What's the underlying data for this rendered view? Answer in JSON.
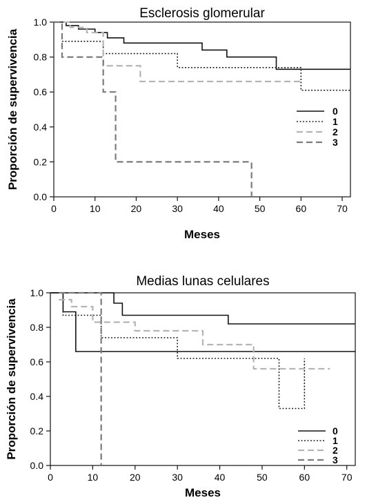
{
  "chart_data": [
    {
      "type": "line",
      "step": true,
      "title": "Esclerosis glomerular",
      "xlabel": "Meses",
      "ylabel": "Proporción de supervivencia",
      "xlim": [
        0,
        72
      ],
      "ylim": [
        0,
        1
      ],
      "xticks": [
        0,
        10,
        20,
        30,
        40,
        50,
        60,
        70
      ],
      "yticks": [
        "0.0",
        "0.2",
        "0.4",
        "0.6",
        "0.8",
        "1.0"
      ],
      "legend_position": "right",
      "series": [
        {
          "name": "0",
          "style": "solid",
          "color": "#111111",
          "x": [
            0,
            3,
            6,
            10,
            13,
            17,
            36,
            42,
            54,
            72
          ],
          "y": [
            1.0,
            0.98,
            0.96,
            0.94,
            0.91,
            0.88,
            0.84,
            0.8,
            0.73,
            0.73
          ]
        },
        {
          "name": "1",
          "style": "dotted",
          "color": "#222222",
          "x": [
            2,
            12,
            30,
            60,
            72
          ],
          "y": [
            0.89,
            0.82,
            0.74,
            0.61,
            0.61
          ]
        },
        {
          "name": "2",
          "style": "dashed",
          "color": "#b4b4b4",
          "x": [
            0,
            4,
            8,
            12,
            21,
            60
          ],
          "y": [
            1.0,
            0.97,
            0.94,
            0.75,
            0.66,
            0.66
          ]
        },
        {
          "name": "3",
          "style": "dashed",
          "color": "#7a7a7a",
          "x": [
            0,
            2,
            12,
            15,
            48
          ],
          "y": [
            1.0,
            0.8,
            0.6,
            0.2,
            0.0
          ]
        }
      ]
    },
    {
      "type": "line",
      "step": true,
      "title": "Medias lunas celulares",
      "xlabel": "Meses",
      "ylabel": "Proporción de supervivencia",
      "xlim": [
        0,
        72
      ],
      "ylim": [
        0,
        1
      ],
      "xticks": [
        0,
        10,
        20,
        30,
        40,
        50,
        60,
        70
      ],
      "yticks": [
        "0.0",
        "0.2",
        "0.4",
        "0.6",
        "0.8",
        "1.0"
      ],
      "legend_position": "right",
      "series": [
        {
          "name": "0",
          "style": "solid",
          "color": "#111111",
          "x": [
            0,
            3,
            6,
            72
          ],
          "y": [
            1.0,
            0.89,
            0.66,
            0.66
          ]
        },
        {
          "name": "0",
          "style": "solid",
          "color": "#111111",
          "x": [
            0,
            15,
            17,
            42,
            72
          ],
          "y": [
            1.0,
            0.94,
            0.87,
            0.82,
            0.82
          ]
        },
        {
          "name": "1",
          "style": "dotted",
          "color": "#222222",
          "x": [
            0,
            3,
            12,
            30,
            54,
            54,
            60,
            60
          ],
          "y": [
            1.0,
            0.87,
            0.74,
            0.62,
            0.62,
            0.33,
            0.62,
            0.4
          ]
        },
        {
          "name": "2",
          "style": "dashed",
          "color": "#b4b4b4",
          "x": [
            2,
            5,
            10,
            20,
            36,
            48,
            66
          ],
          "y": [
            0.96,
            0.92,
            0.83,
            0.78,
            0.7,
            0.56,
            0.56
          ]
        },
        {
          "name": "3",
          "style": "dashed",
          "color": "#7a7a7a",
          "x": [
            2,
            12,
            12
          ],
          "y": [
            1.0,
            1.0,
            0.0
          ]
        }
      ]
    }
  ]
}
